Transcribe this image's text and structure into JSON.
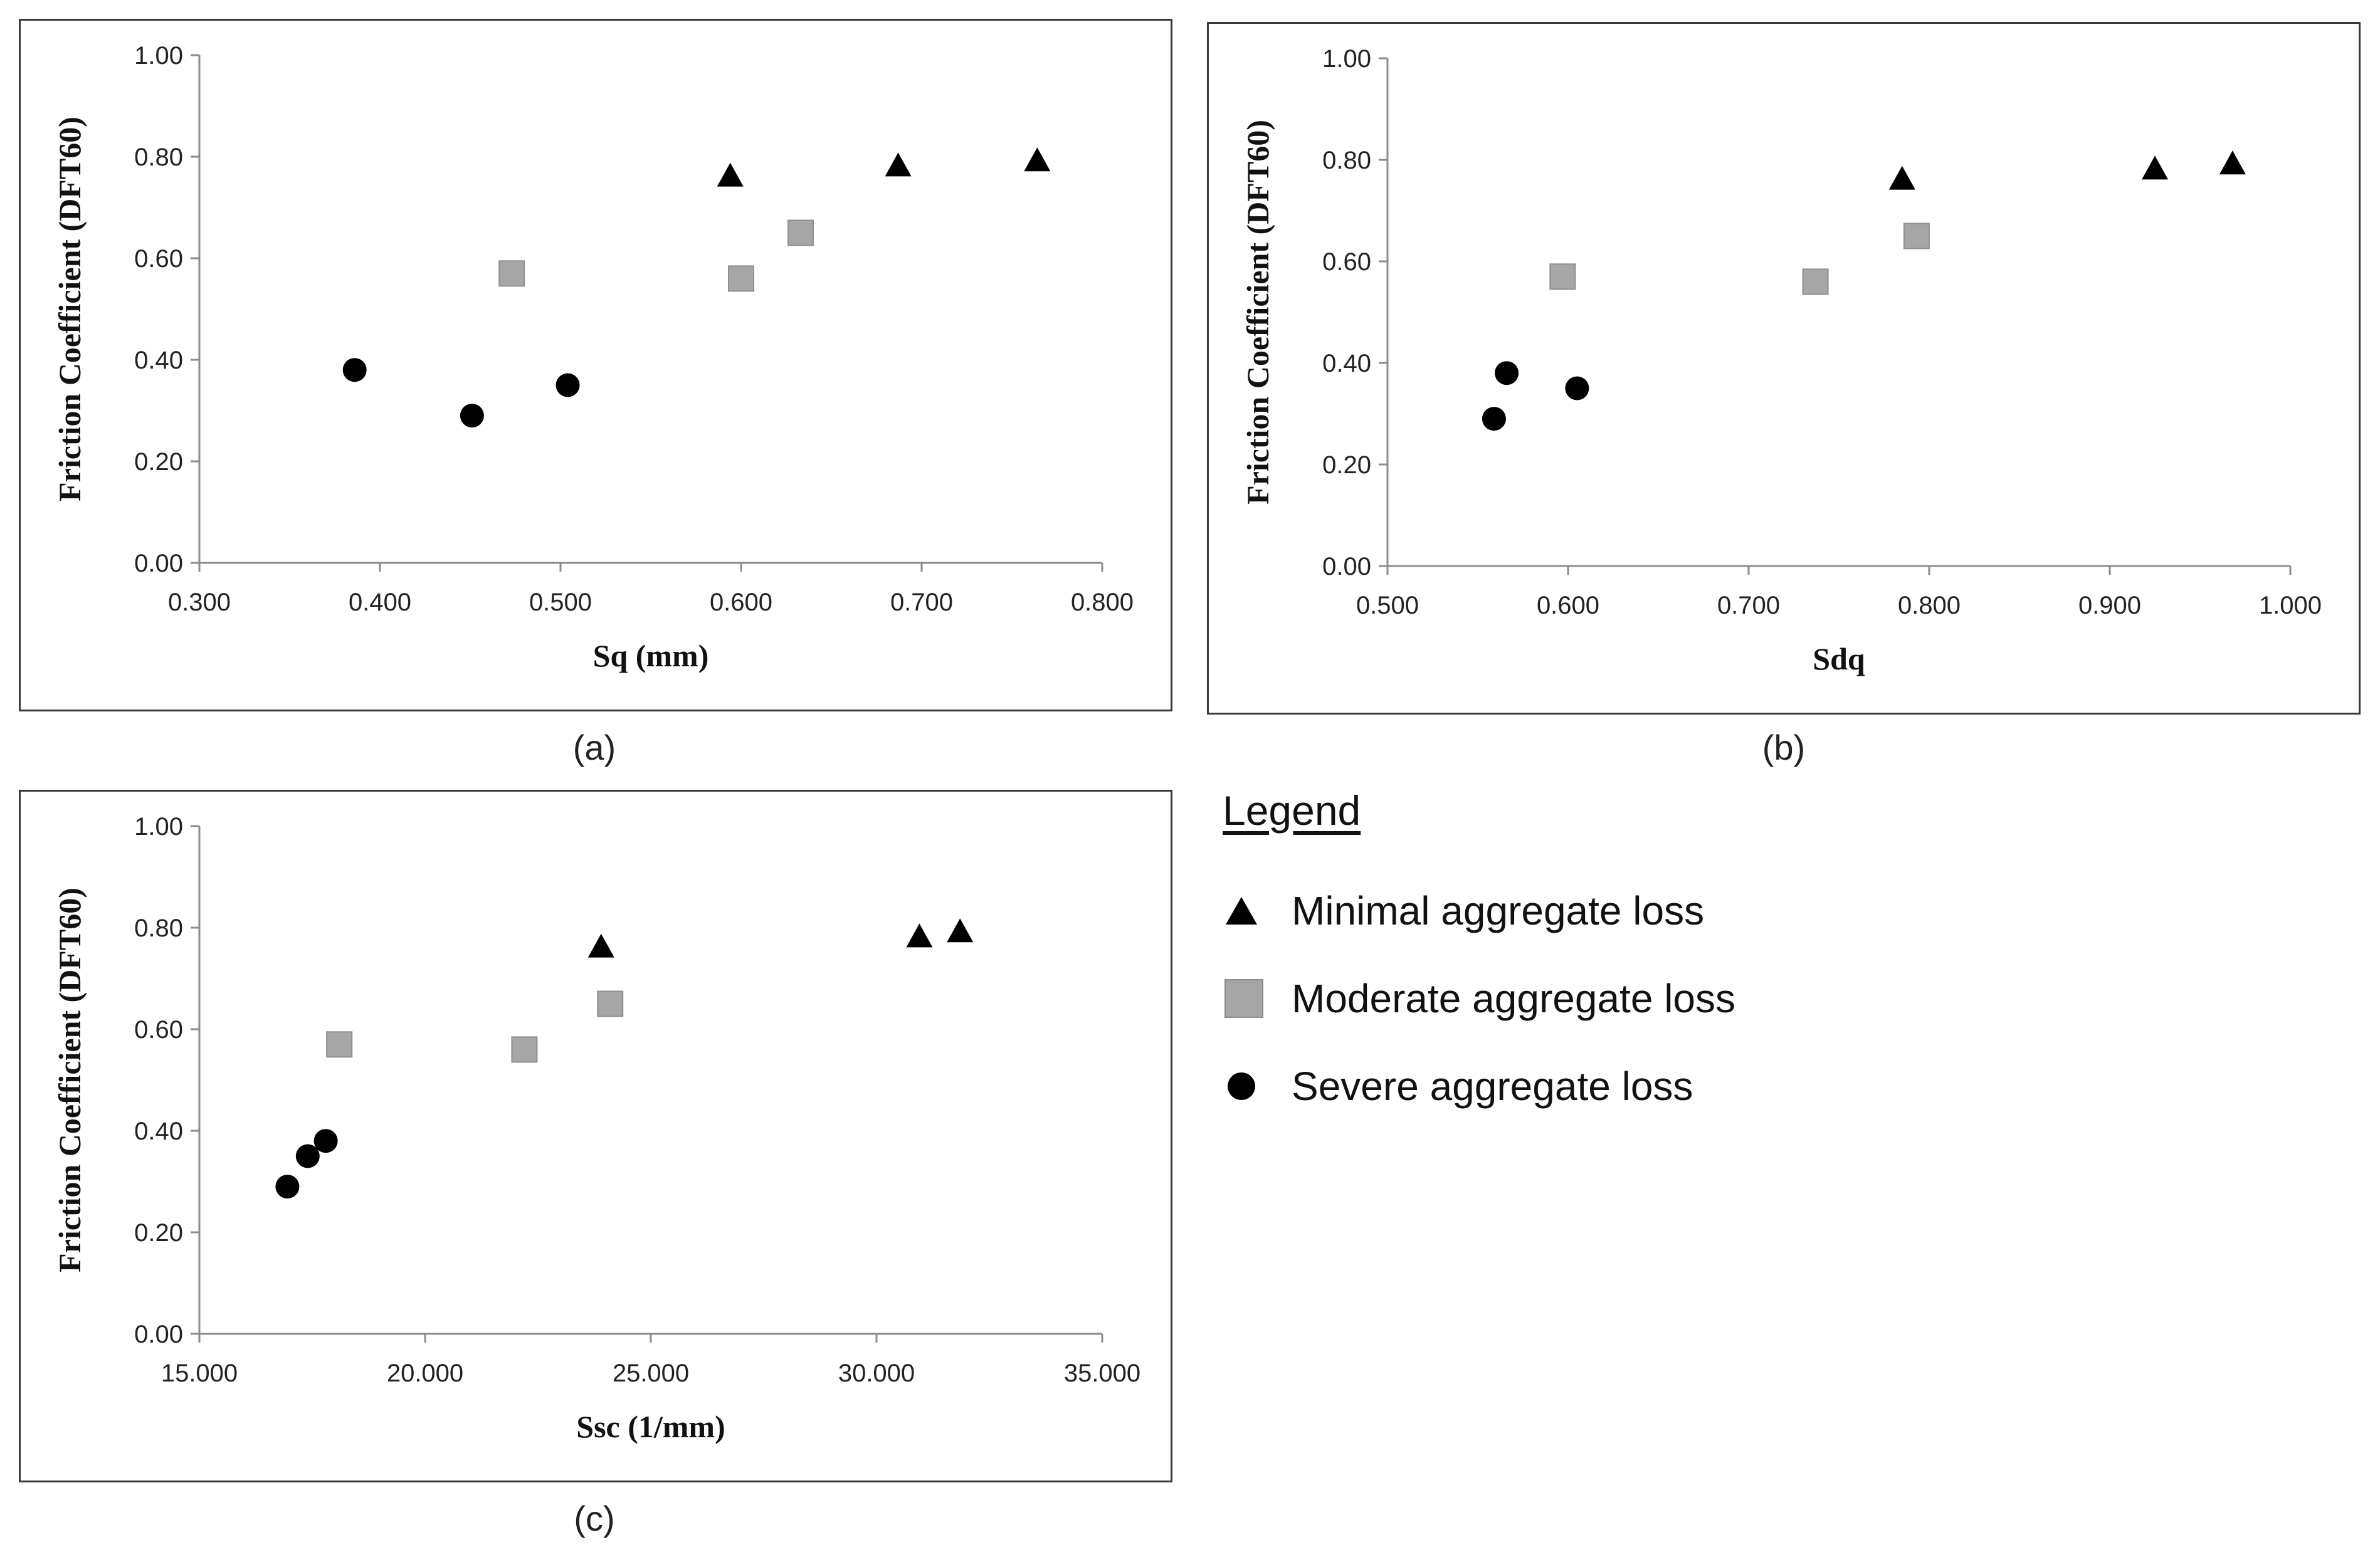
{
  "chart_data": [
    {
      "type": "scatter",
      "panel": "a",
      "caption": "(a)",
      "xlabel": "Sq (mm)",
      "ylabel": "Friction Coefficient  (DFT60)",
      "xlim": [
        0.3,
        0.8
      ],
      "ylim": [
        0.0,
        1.0
      ],
      "x_ticks": [
        "0.300",
        "0.400",
        "0.500",
        "0.600",
        "0.700",
        "0.800"
      ],
      "y_ticks": [
        "0.00",
        "0.20",
        "0.40",
        "0.60",
        "0.80",
        "1.00"
      ],
      "series": [
        {
          "name": "Minimal aggregate loss",
          "marker": "triangle",
          "x": [
            0.594,
            0.687,
            0.764
          ],
          "y": [
            0.76,
            0.78,
            0.79
          ]
        },
        {
          "name": "Moderate aggregate loss",
          "marker": "square",
          "x": [
            0.473,
            0.6,
            0.633
          ],
          "y": [
            0.57,
            0.56,
            0.65
          ]
        },
        {
          "name": "Severe aggregate loss",
          "marker": "circle",
          "x": [
            0.386,
            0.451,
            0.504
          ],
          "y": [
            0.38,
            0.29,
            0.35
          ]
        }
      ]
    },
    {
      "type": "scatter",
      "panel": "b",
      "caption": "(b)",
      "xlabel": "Sdq",
      "ylabel": "Friction Coefficient  (DFT60)",
      "xlim": [
        0.5,
        1.0
      ],
      "ylim": [
        0.0,
        1.0
      ],
      "x_ticks": [
        "0.500",
        "0.600",
        "0.700",
        "0.800",
        "0.900",
        "1.000"
      ],
      "y_ticks": [
        "0.00",
        "0.20",
        "0.40",
        "0.60",
        "0.80",
        "1.00"
      ],
      "series": [
        {
          "name": "Minimal aggregate loss",
          "marker": "triangle",
          "x": [
            0.785,
            0.925,
            0.968
          ],
          "y": [
            0.76,
            0.78,
            0.79
          ]
        },
        {
          "name": "Moderate aggregate loss",
          "marker": "square",
          "x": [
            0.597,
            0.737,
            0.793
          ],
          "y": [
            0.57,
            0.56,
            0.65
          ]
        },
        {
          "name": "Severe aggregate loss",
          "marker": "circle",
          "x": [
            0.566,
            0.559,
            0.605
          ],
          "y": [
            0.38,
            0.29,
            0.35
          ]
        }
      ]
    },
    {
      "type": "scatter",
      "panel": "c",
      "caption": "(c)",
      "xlabel": "Ssc (1/mm)",
      "ylabel": "Friction Coefficient  (DFT60)",
      "xlim": [
        15.0,
        35.0
      ],
      "ylim": [
        0.0,
        1.0
      ],
      "x_ticks": [
        "15.000",
        "20.000",
        "25.000",
        "30.000",
        "35.000"
      ],
      "y_ticks": [
        "0.00",
        "0.20",
        "0.40",
        "0.60",
        "0.80",
        "1.00"
      ],
      "series": [
        {
          "name": "Minimal aggregate loss",
          "marker": "triangle",
          "x": [
            23.9,
            30.95,
            31.85
          ],
          "y": [
            0.76,
            0.78,
            0.79
          ]
        },
        {
          "name": "Moderate aggregate loss",
          "marker": "square",
          "x": [
            18.1,
            22.2,
            24.1
          ],
          "y": [
            0.57,
            0.56,
            0.65
          ]
        },
        {
          "name": "Severe aggregate loss",
          "marker": "circle",
          "x": [
            17.8,
            17.4,
            16.95
          ],
          "y": [
            0.38,
            0.35,
            0.29
          ]
        }
      ]
    }
  ],
  "legend": {
    "title": "Legend",
    "items": [
      {
        "label": "Minimal aggregate loss",
        "marker": "triangle"
      },
      {
        "label": "Moderate aggregate loss",
        "marker": "square"
      },
      {
        "label": "Severe aggregate loss",
        "marker": "circle"
      }
    ]
  },
  "colors": {
    "triangle": "#000000",
    "square": "#a6a6a6",
    "circle": "#000000",
    "axis": "#8c8c8c",
    "frame": "#3a3a3a"
  }
}
